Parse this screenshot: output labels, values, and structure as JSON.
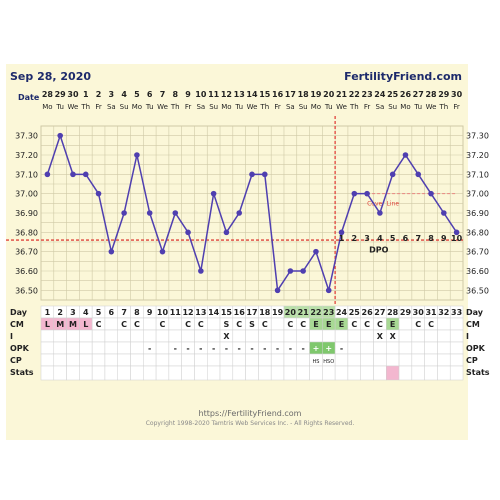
{
  "header": {
    "date": "Sep 28, 2020",
    "brand": "FertilityFriend.com"
  },
  "footer": {
    "url": "https://FertilityFriend.com",
    "copyright": "Copyright 1998-2020 Tamtris Web Services Inc. - All Rights Reserved."
  },
  "chart_data": {
    "type": "line",
    "row_labels": {
      "date": "Date",
      "day": "Day",
      "cm": "CM",
      "i": "I",
      "opk": "OPK",
      "cp": "CP",
      "stats": "Stats"
    },
    "dates": [
      "28",
      "29",
      "30",
      "1",
      "2",
      "3",
      "4",
      "5",
      "6",
      "7",
      "8",
      "9",
      "10",
      "11",
      "12",
      "13",
      "14",
      "15",
      "16",
      "17",
      "18",
      "19",
      "20",
      "21",
      "22",
      "23",
      "24",
      "25",
      "26",
      "27",
      "28",
      "29",
      "30"
    ],
    "weekdays": [
      "Mo",
      "Tu",
      "We",
      "Th",
      "Fr",
      "Sa",
      "Su",
      "Mo",
      "Tu",
      "We",
      "Th",
      "Fr",
      "Sa",
      "Su",
      "Mo",
      "Tu",
      "We",
      "Th",
      "Fr",
      "Sa",
      "Su",
      "Mo",
      "Tu",
      "We",
      "Th",
      "Fr",
      "Sa",
      "Su",
      "Mo",
      "Tu",
      "We",
      "Th",
      "Fr"
    ],
    "days": [
      1,
      2,
      3,
      4,
      5,
      6,
      7,
      8,
      9,
      10,
      11,
      12,
      13,
      14,
      15,
      16,
      17,
      18,
      19,
      20,
      21,
      22,
      23,
      24,
      25,
      26,
      27,
      28,
      29,
      30,
      31,
      32,
      33
    ],
    "temps": [
      37.1,
      37.3,
      37.1,
      37.1,
      37.0,
      36.7,
      36.9,
      37.2,
      36.9,
      36.7,
      36.9,
      36.8,
      36.6,
      37.0,
      36.8,
      36.9,
      37.1,
      37.1,
      36.5,
      36.6,
      36.6,
      36.7,
      36.5,
      36.8,
      37.0,
      37.0,
      36.9,
      37.1,
      37.2,
      37.1,
      37.0,
      36.9,
      36.8
    ],
    "y_ticks": [
      "37.30",
      "37.20",
      "37.10",
      "37.00",
      "36.90",
      "36.80",
      "36.70",
      "36.60",
      "36.50"
    ],
    "ylim": [
      36.45,
      37.35
    ],
    "coverline": 36.76,
    "ovulation_day": 23,
    "dpo_labels": [
      "1",
      "2",
      "3",
      "4",
      "5",
      "6",
      "7",
      "8",
      "9",
      "10"
    ],
    "dpo_label": "DPO",
    "cover_label": "Cover Line",
    "cm": [
      "L",
      "M",
      "M",
      "L",
      "C",
      "",
      "C",
      "C",
      "",
      "C",
      "",
      "C",
      "C",
      "",
      "S",
      "C",
      "S",
      "C",
      "",
      "C",
      "C",
      "E",
      "E",
      "E",
      "C",
      "C",
      "C",
      "E",
      "",
      "C",
      "C",
      "",
      ""
    ],
    "i_marks": [
      "",
      "",
      "",
      "",
      "",
      "",
      "",
      "",
      "",
      "",
      "",
      "",
      "",
      "",
      "X",
      "",
      "",
      "",
      "",
      "",
      "",
      "",
      "",
      "",
      "",
      "",
      "X",
      "X",
      "",
      "",
      "",
      "",
      ""
    ],
    "opk": [
      "",
      "",
      "",
      "",
      "",
      "",
      "",
      "",
      "-",
      "",
      "-",
      "-",
      "-",
      "-",
      "-",
      "-",
      "-",
      "-",
      "-",
      "-",
      "-",
      "+",
      "+",
      "-",
      "",
      "",
      "",
      "",
      "",
      "",
      "",
      "",
      ""
    ],
    "cp": [
      "",
      "",
      "",
      "",
      "",
      "",
      "",
      "",
      "",
      "",
      "",
      "",
      "",
      "",
      "",
      "",
      "",
      "",
      "",
      "",
      "",
      "HS",
      "HSO",
      "",
      "",
      "",
      "",
      "",
      "",
      "",
      "",
      "",
      ""
    ],
    "stats_pink_day": 28,
    "colors": {
      "line": "#4f3fb0",
      "coverline": "#e0443c",
      "cm_pink": "#f3b7cf",
      "day_green": "#b9e0a8",
      "e_green": "#a8d994",
      "opk_green": "#7fc86d",
      "stats_pink": "#f3b7cf",
      "grid_bg": "#fbf7d8",
      "grid_line": "#cfc9a6"
    }
  }
}
